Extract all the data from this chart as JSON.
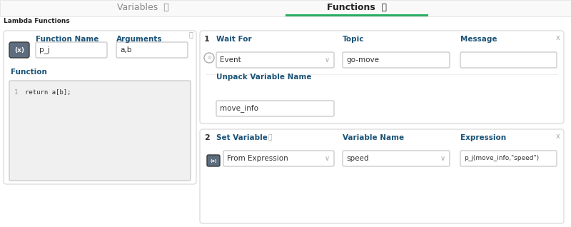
{
  "bg_color": "#ffffff",
  "tab_bar_bg": "#f5f5f5",
  "tab_variables_text": "Variables",
  "tab_functions_text": "Functions",
  "tab_active_color": "#2ecc71",
  "tab_inactive_color": "#555555",
  "tab_active_text_color": "#222222",
  "tab_inactive_text_color": "#888888",
  "info_icon_color": "#aaaaaa",
  "section_label": "Lambda Functions",
  "panel_bg": "#ffffff",
  "panel_border": "#dddddd",
  "input_bg": "#ffffff",
  "input_border": "#cccccc",
  "label_color": "#1a5276",
  "text_color": "#333333",
  "code_bg": "#f0f0f0",
  "code_text": "#333333",
  "placeholder_color": "#999999",
  "green_bar_color": "#27ae60",
  "icon_bg": "#5d6d7e",
  "icon_border": "#4a4a4a",
  "dropdown_arrow": "#888888",
  "x_button_color": "#aaaaaa"
}
